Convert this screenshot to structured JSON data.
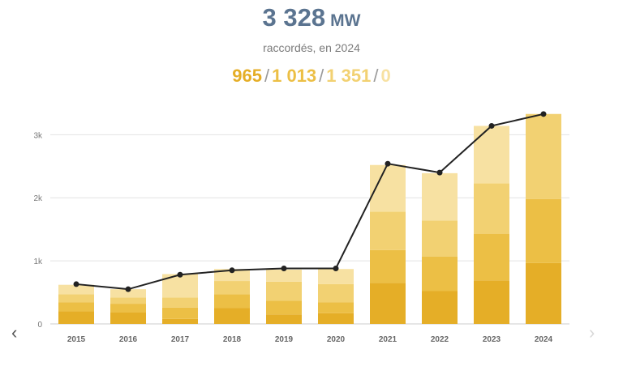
{
  "headline": {
    "value": "3 328",
    "unit": "MW"
  },
  "subtitle": "raccordés, en 2024",
  "breakdown": [
    {
      "value": "965",
      "color": "#e5ae27"
    },
    {
      "value": "1 013",
      "color": "#ecbf45"
    },
    {
      "value": "1 351",
      "color": "#f2d172"
    },
    {
      "value": "0",
      "color": "#f7e1a2"
    }
  ],
  "separator": "/",
  "nav": {
    "prev": "‹",
    "next": "›"
  },
  "chart_data": {
    "type": "bar",
    "stacked": true,
    "categories": [
      "2015",
      "2016",
      "2017",
      "2018",
      "2019",
      "2020",
      "2021",
      "2022",
      "2023",
      "2024"
    ],
    "series": [
      {
        "color": "#e5ae27",
        "values": [
          200,
          180,
          80,
          250,
          150,
          170,
          650,
          520,
          690,
          965
        ]
      },
      {
        "color": "#ecbf45",
        "values": [
          140,
          140,
          180,
          220,
          220,
          170,
          520,
          550,
          740,
          1013
        ]
      },
      {
        "color": "#f2d172",
        "values": [
          130,
          100,
          160,
          210,
          300,
          290,
          610,
          570,
          800,
          1351
        ]
      },
      {
        "color": "#f7e1a2",
        "values": [
          150,
          130,
          370,
          190,
          190,
          240,
          740,
          750,
          910,
          0
        ]
      }
    ],
    "line": {
      "color": "#222222",
      "values": [
        630,
        550,
        780,
        850,
        880,
        880,
        2540,
        2400,
        3140,
        3328
      ]
    },
    "ylim": [
      0,
      3300
    ],
    "yticks": [
      0,
      1000,
      2000,
      3000
    ],
    "ytick_labels": [
      "0",
      "1k",
      "2k",
      "3k"
    ],
    "grid": true,
    "title": "",
    "xlabel": "",
    "ylabel": ""
  }
}
